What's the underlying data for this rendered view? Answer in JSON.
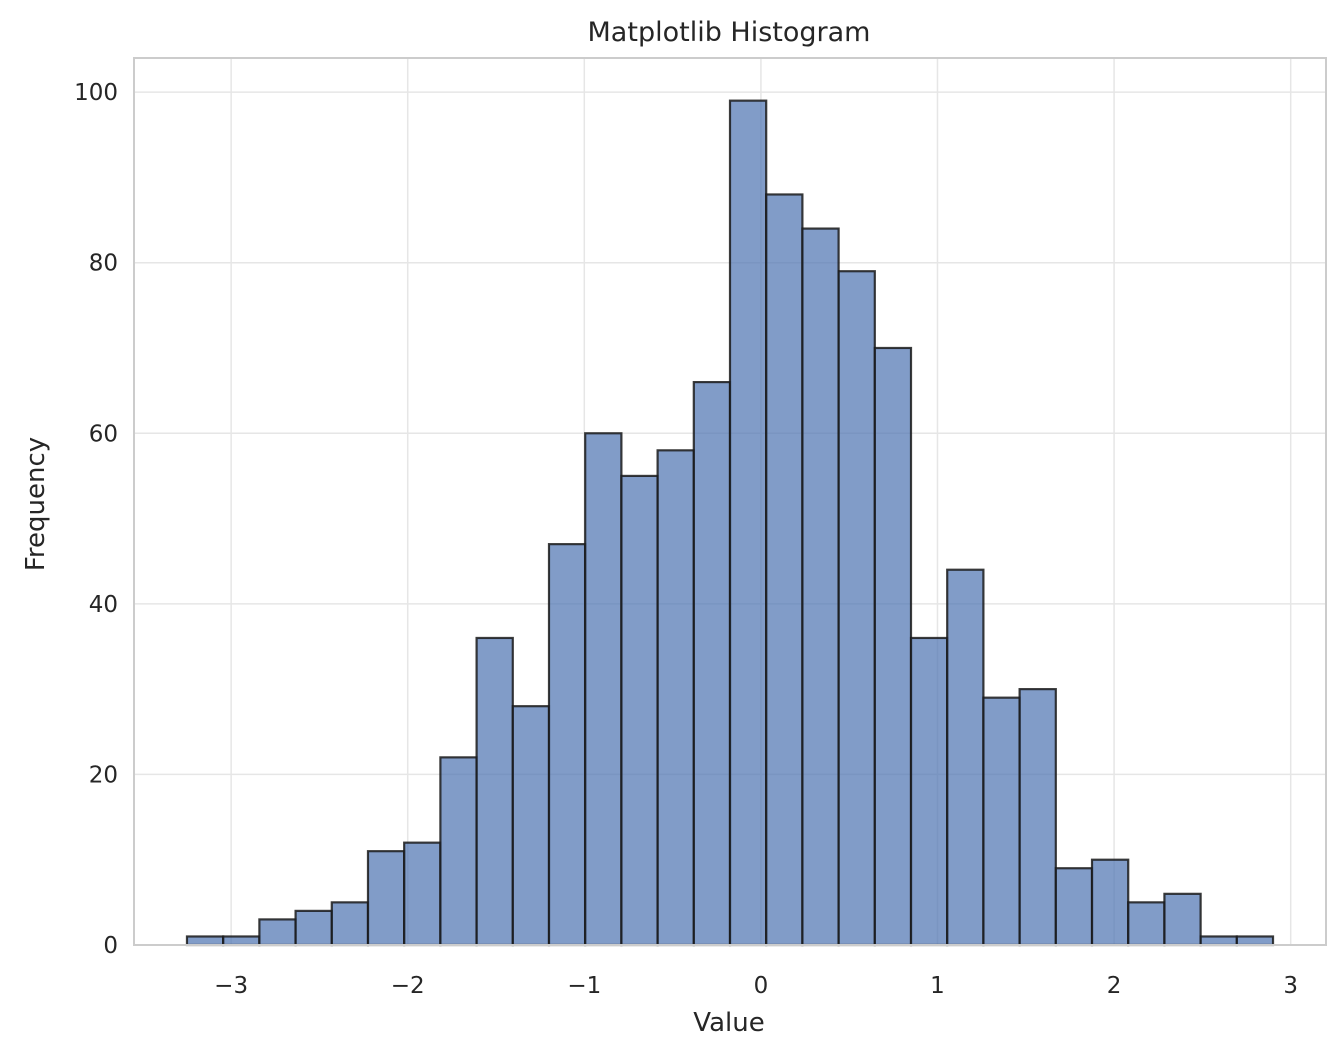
{
  "chart_data": {
    "type": "bar",
    "title": "Matplotlib Histogram",
    "xlabel": "Value",
    "ylabel": "Frequency",
    "xlim": [
      -3.55,
      3.2
    ],
    "ylim": [
      0,
      104
    ],
    "grid": true,
    "legend": "none",
    "bin_edges": [
      -3.25,
      -3.045,
      -2.84,
      -2.635,
      -2.43,
      -2.225,
      -2.02,
      -1.815,
      -1.61,
      -1.405,
      -1.2,
      -0.995,
      -0.79,
      -0.585,
      -0.38,
      -0.175,
      0.03,
      0.235,
      0.44,
      0.645,
      0.85,
      1.055,
      1.26,
      1.465,
      1.67,
      1.875,
      2.08,
      2.285,
      2.49,
      2.695,
      2.9
    ],
    "values": [
      1,
      1,
      3,
      4,
      5,
      11,
      12,
      22,
      36,
      28,
      47,
      60,
      55,
      58,
      66,
      99,
      88,
      84,
      79,
      70,
      36,
      44,
      29,
      30,
      9,
      10,
      5,
      6,
      1,
      1
    ],
    "xticks": [
      -3,
      -2,
      -1,
      0,
      1,
      2,
      3
    ],
    "xtick_labels": [
      "−3",
      "−2",
      "−1",
      "0",
      "1",
      "2",
      "3"
    ],
    "yticks": [
      0,
      20,
      40,
      60,
      80,
      100
    ],
    "ytick_labels": [
      "0",
      "20",
      "40",
      "60",
      "80",
      "100"
    ],
    "colors": {
      "bar_fill": "#4c72b0",
      "bar_edge": "#1a1a1a",
      "grid": "#e6e6e6",
      "frame": "#cccccc"
    }
  }
}
